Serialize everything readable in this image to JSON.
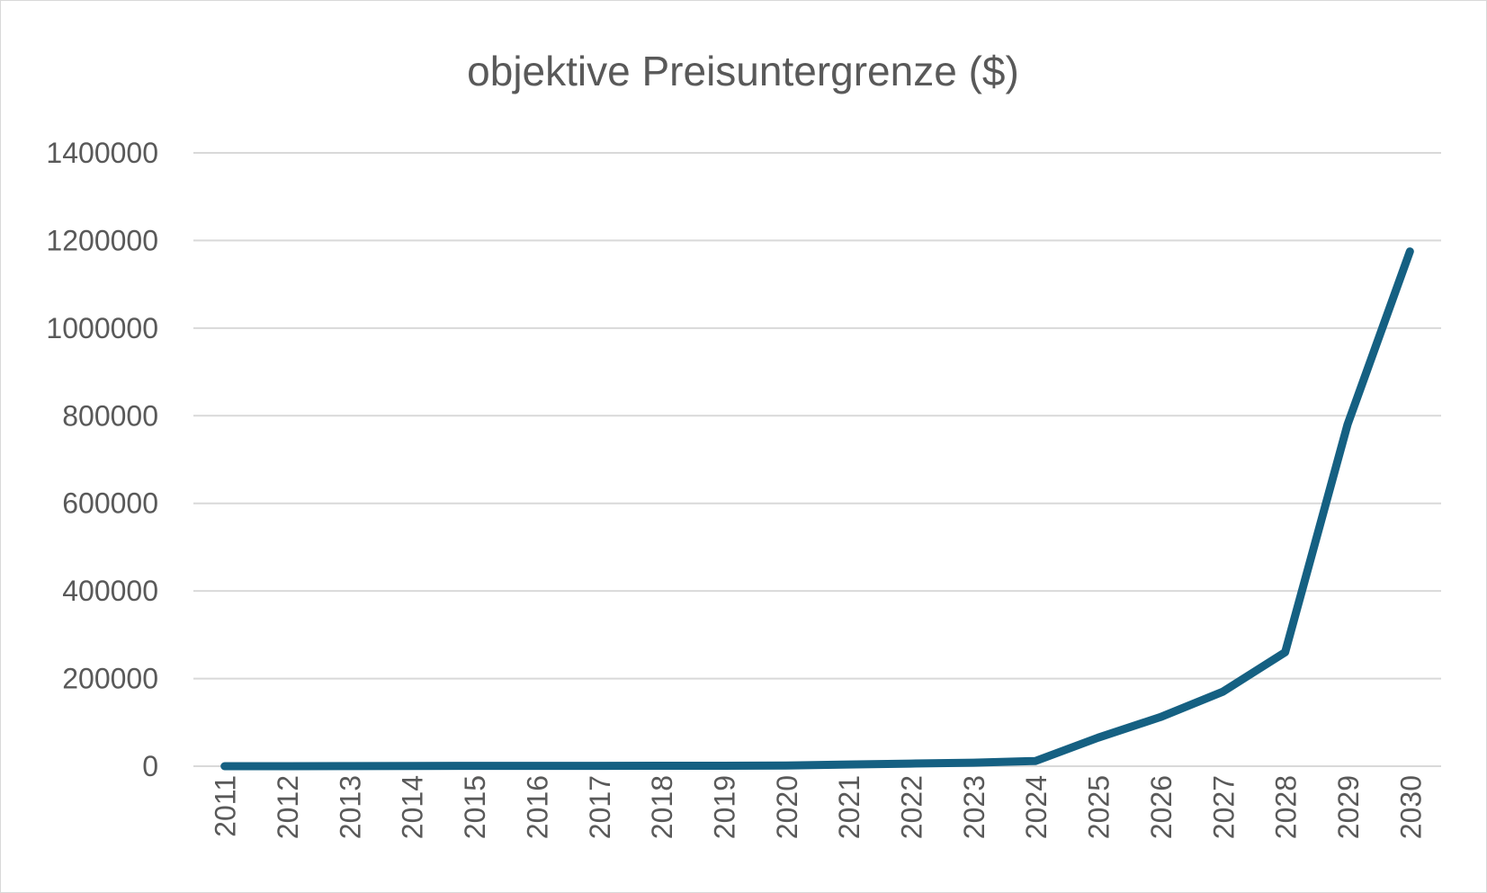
{
  "chart_data": {
    "type": "line",
    "title": "objektive Preisuntergrenze ($)",
    "xlabel": "",
    "ylabel": "",
    "ylim": [
      0,
      1400000
    ],
    "yticks": [
      "0",
      "200000",
      "400000",
      "600000",
      "800000",
      "1000000",
      "1200000",
      "1400000"
    ],
    "grid": true,
    "legend": "none",
    "categories": [
      "2011",
      "2012",
      "2013",
      "2014",
      "2015",
      "2016",
      "2017",
      "2018",
      "2019",
      "2020",
      "2021",
      "2022",
      "2023",
      "2024",
      "2025",
      "2026",
      "2027",
      "2028",
      "2029",
      "2030"
    ],
    "series": [
      {
        "color": "#156082",
        "values": [
          0,
          0,
          200,
          500,
          800,
          800,
          800,
          1000,
          1000,
          1500,
          4000,
          6000,
          8000,
          12000,
          65000,
          112000,
          170000,
          260000,
          780000,
          1175000
        ]
      }
    ]
  }
}
